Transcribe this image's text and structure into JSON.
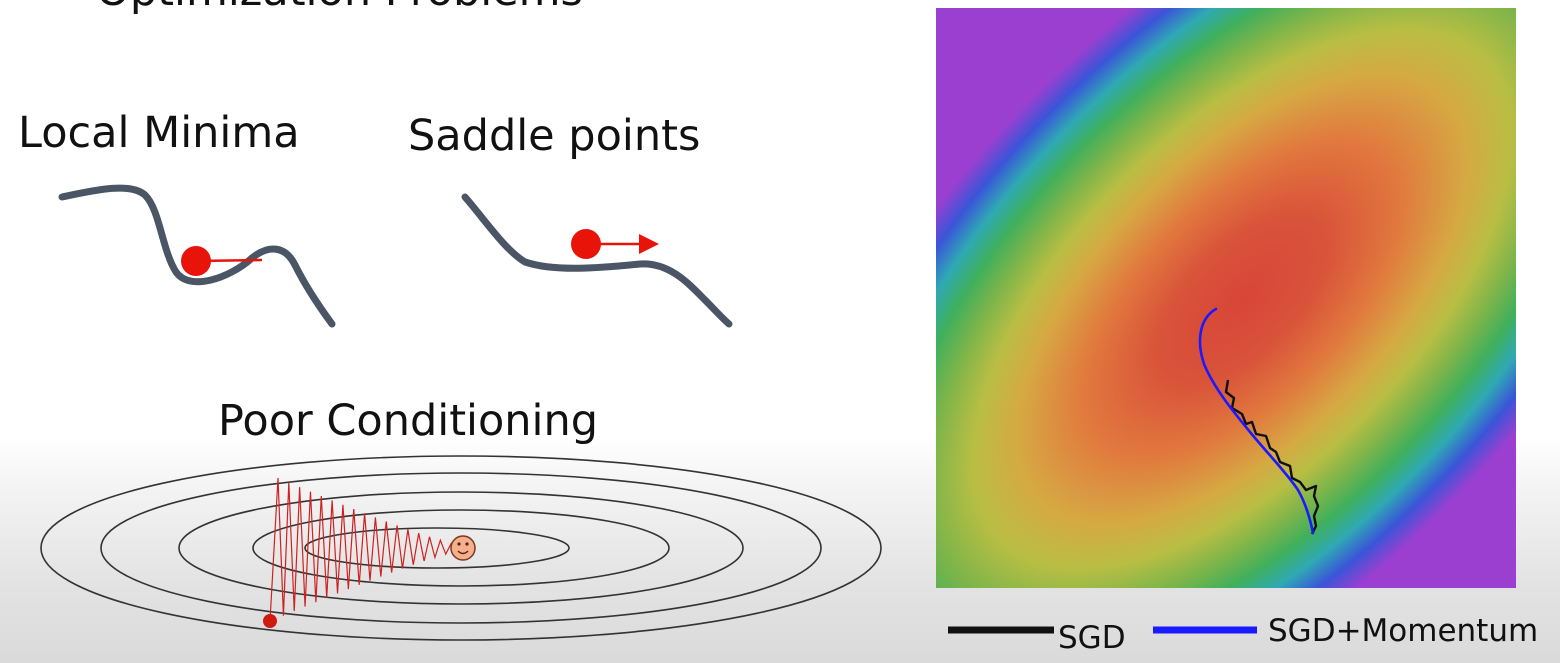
{
  "slide": {
    "top_heading_fragment": "Optimization Problems",
    "local_minima_label": "Local Minima",
    "saddle_points_label": "Saddle points",
    "poor_conditioning_label": "Poor Conditioning"
  },
  "legend": {
    "sgd_label": "SGD",
    "momentum_label": "SGD+Momentum",
    "sgd_color": "#111111",
    "momentum_color": "#1a1aff"
  },
  "colors": {
    "curve": "#4a5566",
    "ball": "#e8140a",
    "ellipse": "#333333"
  }
}
